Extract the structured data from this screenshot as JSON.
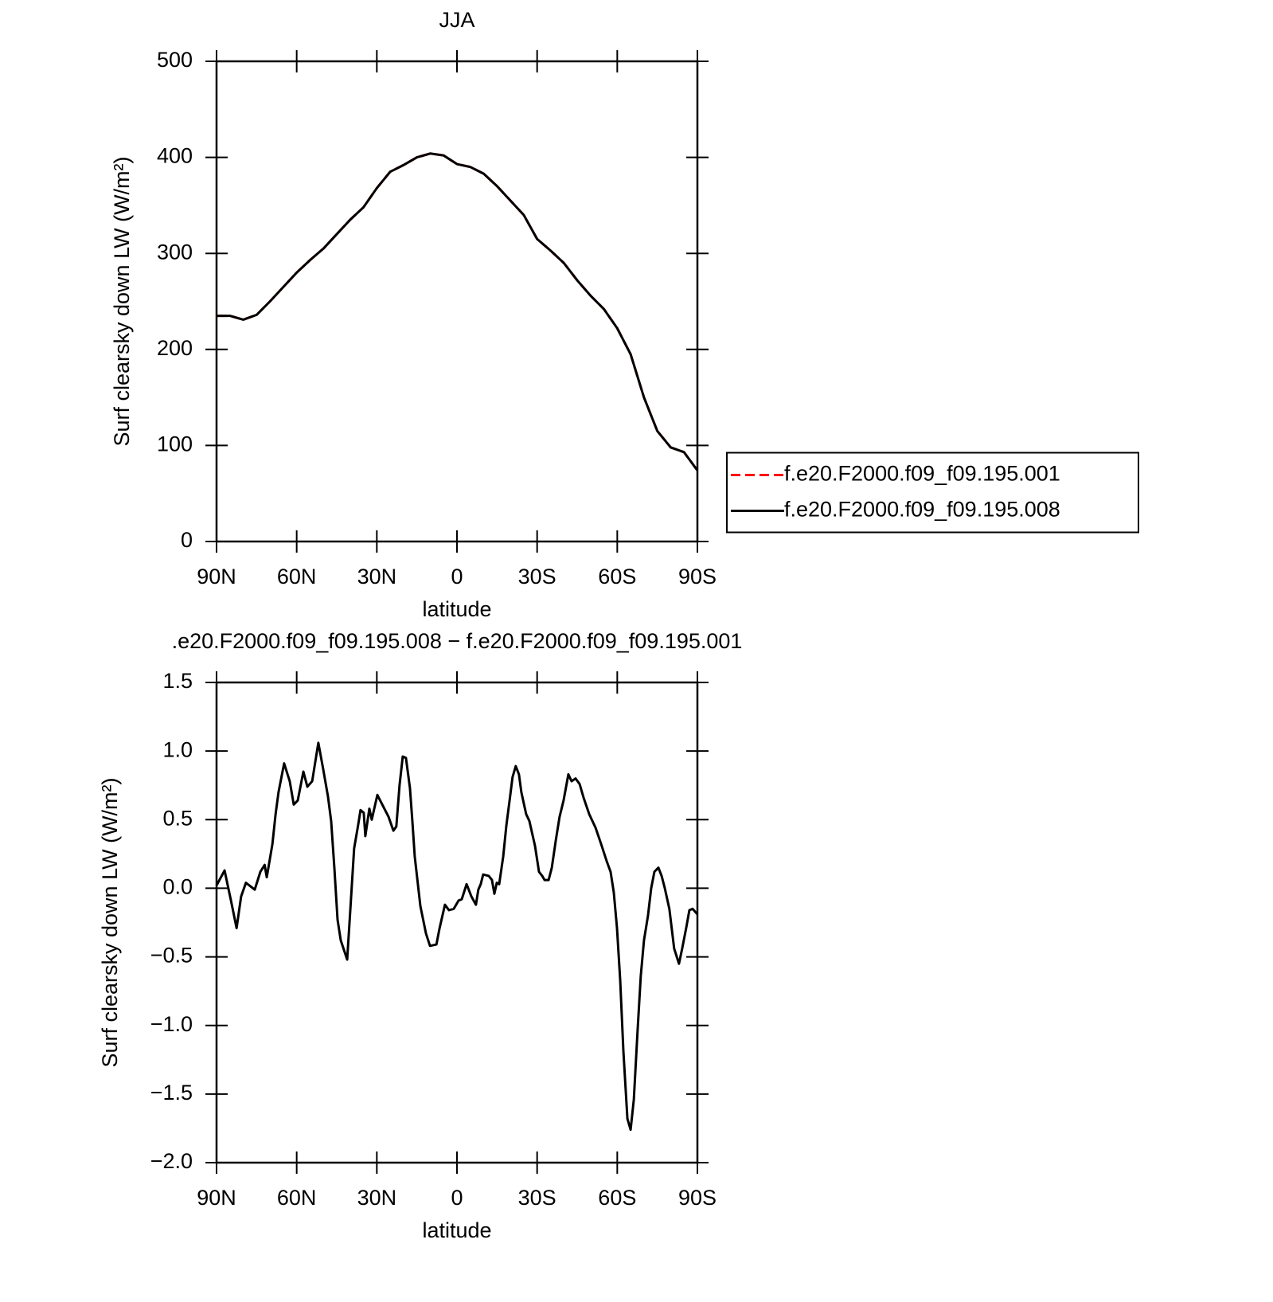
{
  "chart_data": [
    {
      "type": "line",
      "title": "JJA",
      "x_label": "latitude",
      "y_label": "Surf clearsky down LW (W/m²)",
      "x": [
        90,
        85,
        80,
        75,
        70,
        65,
        60,
        55,
        50,
        45,
        40,
        35,
        30,
        25,
        20,
        15,
        10,
        5,
        0,
        -5,
        -10,
        -15,
        -20,
        -25,
        -30,
        -35,
        -40,
        -45,
        -50,
        -55,
        -60,
        -65,
        -70,
        -75,
        -80,
        -85,
        -90
      ],
      "series": [
        {
          "name": "f.e20.F2000.f09_f09.195.001",
          "color": "#ff0000",
          "line_style": "dashed",
          "values": [
            235,
            235,
            231,
            236,
            250,
            265,
            280,
            293,
            305,
            320,
            335,
            348,
            368,
            385,
            392,
            400,
            404,
            402,
            393,
            390,
            383,
            370,
            355,
            340,
            315,
            303,
            290,
            272,
            256,
            242,
            222,
            195,
            150,
            115,
            98,
            93,
            74
          ]
        },
        {
          "name": "f.e20.F2000.f09_f09.195.008",
          "color": "#000000",
          "line_style": "solid",
          "values": [
            235,
            235,
            231,
            236,
            250,
            265,
            280,
            293,
            305,
            320,
            335,
            348,
            368,
            385,
            392,
            400,
            404,
            402,
            393,
            390,
            383,
            370,
            355,
            340,
            315,
            303,
            290,
            272,
            256,
            242,
            222,
            195,
            150,
            115,
            98,
            93,
            74
          ]
        }
      ],
      "xlim": [
        90,
        -90
      ],
      "xticks": [
        {
          "value": 90,
          "label": "90N"
        },
        {
          "value": 60,
          "label": "60N"
        },
        {
          "value": 30,
          "label": "30N"
        },
        0,
        {
          "value": -30,
          "label": "30S"
        },
        {
          "value": -60,
          "label": "60S"
        },
        {
          "value": -90,
          "label": "90S"
        }
      ],
      "ylim": [
        0,
        500
      ],
      "yticks": [
        0,
        100,
        200,
        300,
        400,
        500
      ],
      "legend": "right"
    },
    {
      "type": "line",
      "title": ".e20.F2000.f09_f09.195.008 − f.e20.F2000.f09_f09.195.001",
      "x_label": "latitude",
      "y_label": "Surf clearsky down LW (W/m²)",
      "x": [
        90,
        87,
        84.6,
        82.5,
        80.8,
        79,
        75.7,
        73.6,
        72,
        71.2,
        69.1,
        67.9,
        66.8,
        64.7,
        62.6,
        61.1,
        59.6,
        57.5,
        56,
        54.2,
        51.9,
        50.1,
        48.3,
        47.1,
        45.9,
        44.7,
        43.5,
        41.1,
        39.9,
        38.5,
        37,
        36.1,
        34.9,
        34.3,
        32.8,
        31.9,
        29.8,
        27.7,
        25.6,
        23.8,
        22.7,
        21.5,
        20.3,
        19.1,
        17.6,
        16.7,
        15.8,
        13.7,
        11.6,
        10.1,
        7.7,
        6.5,
        4.5,
        3,
        1.2,
        -0.6,
        -1.8,
        -3.6,
        -5.4,
        -7.1,
        -8,
        -8.9,
        -9.8,
        -11.9,
        -13.1,
        -14,
        -14.9,
        -15.8,
        -17.3,
        -18.5,
        -19.7,
        -20.8,
        -22,
        -23.2,
        -24.1,
        -25.9,
        -27.1,
        -29.2,
        -30.7,
        -31.9,
        -32.8,
        -34.3,
        -35.5,
        -37,
        -38.4,
        -39.9,
        -41.7,
        -42.9,
        -44.4,
        -45.9,
        -47.4,
        -49.5,
        -51.9,
        -54,
        -56,
        -57.5,
        -58.7,
        -59.9,
        -61.1,
        -62.3,
        -63.8,
        -65,
        -66.2,
        -67.6,
        -68.8,
        -70,
        -71.5,
        -72.7,
        -73.9,
        -75.4,
        -76.6,
        -77.8,
        -79.5,
        -81.3,
        -83.1,
        -84.3,
        -85.8,
        -87,
        -88.2,
        -90
      ],
      "values": [
        0.02,
        0.13,
        -0.09,
        -0.29,
        -0.06,
        0.04,
        -0.01,
        0.12,
        0.17,
        0.08,
        0.32,
        0.54,
        0.7,
        0.91,
        0.78,
        0.61,
        0.64,
        0.85,
        0.74,
        0.78,
        1.06,
        0.87,
        0.67,
        0.49,
        0.15,
        -0.23,
        -0.38,
        -0.52,
        -0.15,
        0.29,
        0.46,
        0.57,
        0.55,
        0.38,
        0.58,
        0.5,
        0.68,
        0.6,
        0.52,
        0.42,
        0.45,
        0.75,
        0.96,
        0.95,
        0.73,
        0.49,
        0.23,
        -0.13,
        -0.33,
        -0.42,
        -0.41,
        -0.29,
        -0.12,
        -0.16,
        -0.15,
        -0.09,
        -0.08,
        0.03,
        -0.06,
        -0.12,
        -0.01,
        0.03,
        0.1,
        0.09,
        0.06,
        -0.04,
        0.04,
        0.03,
        0.23,
        0.46,
        0.64,
        0.81,
        0.89,
        0.83,
        0.7,
        0.54,
        0.49,
        0.31,
        0.12,
        0.09,
        0.06,
        0.06,
        0.15,
        0.35,
        0.52,
        0.64,
        0.83,
        0.78,
        0.8,
        0.76,
        0.66,
        0.54,
        0.44,
        0.32,
        0.2,
        0.12,
        -0.03,
        -0.29,
        -0.67,
        -1.19,
        -1.68,
        -1.76,
        -1.54,
        -1.04,
        -0.64,
        -0.38,
        -0.2,
        0,
        0.12,
        0.15,
        0.09,
        0,
        -0.15,
        -0.44,
        -0.55,
        -0.44,
        -0.29,
        -0.16,
        -0.15,
        -0.19
      ],
      "color": "#000000",
      "xlim": [
        90,
        -90
      ],
      "xticks": [
        {
          "value": 90,
          "label": "90N"
        },
        {
          "value": 60,
          "label": "60N"
        },
        {
          "value": 30,
          "label": "30N"
        },
        0,
        {
          "value": -30,
          "label": "30S"
        },
        {
          "value": -60,
          "label": "60S"
        },
        {
          "value": -90,
          "label": "90S"
        }
      ],
      "ylim": [
        -2,
        1.5
      ],
      "yticks": [
        {
          "value": -2,
          "label": "−2.0"
        },
        {
          "value": -1.5,
          "label": "−1.5"
        },
        {
          "value": -1,
          "label": "−1.0"
        },
        {
          "value": -0.5,
          "label": "−0.5"
        },
        {
          "value": 0,
          "label": "0.0"
        },
        0.5,
        {
          "value": 1,
          "label": "1.0"
        },
        1.5
      ]
    }
  ]
}
